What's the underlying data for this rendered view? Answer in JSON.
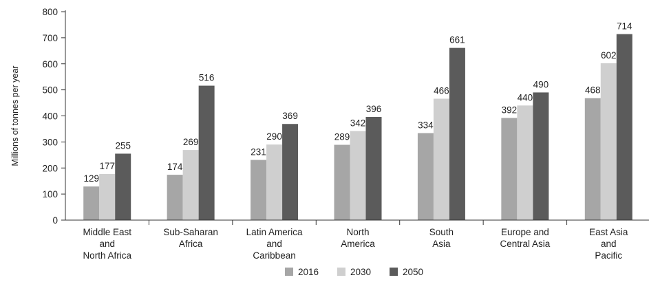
{
  "chart_data": {
    "type": "bar",
    "ylabel": "Millions of tonnes per year",
    "ylim": [
      0,
      800
    ],
    "yticks": [
      0,
      100,
      200,
      300,
      400,
      500,
      600,
      700,
      800
    ],
    "grid": false,
    "legend_position": "bottom",
    "categories": [
      [
        "Middle East",
        "and",
        "North Africa"
      ],
      [
        "Sub-Saharan",
        "Africa"
      ],
      [
        "Latin America",
        "and",
        "Caribbean"
      ],
      [
        "North",
        "America"
      ],
      [
        "South",
        "Asia"
      ],
      [
        "Europe and",
        "Central Asia"
      ],
      [
        "East Asia",
        "and",
        "Pacific"
      ]
    ],
    "series": [
      {
        "name": "2016",
        "color": "#a6a6a6",
        "values": [
          129,
          174,
          231,
          289,
          334,
          392,
          468
        ]
      },
      {
        "name": "2030",
        "color": "#cfcfcf",
        "values": [
          177,
          269,
          290,
          342,
          466,
          440,
          602
        ]
      },
      {
        "name": "2050",
        "color": "#5b5b5b",
        "values": [
          255,
          516,
          369,
          396,
          661,
          490,
          714
        ]
      }
    ]
  }
}
